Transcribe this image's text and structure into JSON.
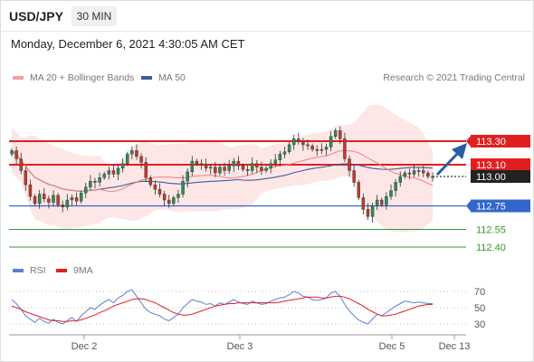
{
  "header": {
    "symbol": "USD/JPY",
    "timeframe": "30 MIN"
  },
  "timestamp": "Monday, December 6, 2021 4:30:05 AM CET",
  "legend": {
    "ma20_label": "MA 20 + Bollinger Bands",
    "ma50_label": "MA 50",
    "copyright": "Research © 2021 Trading Central",
    "rsi_label": "RSI",
    "rsi_ma_label": "9MA"
  },
  "colors": {
    "bollinger_fill": "#fde2e2",
    "ma20": "#f08080",
    "ma50": "#3f5c9a",
    "resistance": "#e02020",
    "support": "#3366cc",
    "target": "#339933",
    "bull": "#2e8b57",
    "bear": "#c0392b",
    "arrow": "#2b5ca8",
    "rsi": "#5b7fd6",
    "rsi_ma": "#e02020"
  },
  "chart_data": [
    {
      "type": "candlestick",
      "x_tick_labels": [
        "Dec 2",
        "Dec 3",
        "Dec 5",
        "Dec 13"
      ],
      "price_levels": [
        {
          "value": "113.30",
          "kind": "resistance"
        },
        {
          "value": "113.10",
          "kind": "resistance"
        },
        {
          "value": "113.00",
          "kind": "current"
        },
        {
          "value": "112.75",
          "kind": "support"
        },
        {
          "value": "112.55",
          "kind": "target"
        },
        {
          "value": "112.40",
          "kind": "target"
        }
      ],
      "approx_close_series": [
        113.22,
        113.15,
        113.05,
        112.93,
        112.83,
        112.77,
        112.85,
        112.81,
        112.78,
        112.84,
        112.76,
        112.74,
        112.8,
        112.82,
        112.79,
        112.86,
        112.91,
        112.96,
        112.95,
        112.99,
        113.02,
        113.05,
        113.02,
        113.07,
        113.11,
        113.19,
        113.22,
        113.17,
        113.12,
        112.99,
        112.93,
        112.89,
        112.85,
        112.8,
        112.77,
        112.82,
        112.85,
        112.96,
        113.04,
        113.13,
        113.11,
        113.1,
        113.07,
        113.08,
        113.03,
        113.08,
        113.05,
        113.09,
        113.13,
        113.09,
        113.06,
        113.05,
        113.11,
        113.08,
        113.05,
        113.07,
        113.11,
        113.14,
        113.19,
        113.21,
        113.27,
        113.32,
        113.3,
        113.27,
        113.26,
        113.23,
        113.22,
        113.23,
        113.25,
        113.34,
        113.39,
        113.32,
        113.15,
        113.05,
        112.95,
        112.82,
        112.72,
        112.66,
        112.75,
        112.8,
        112.76,
        112.83,
        112.88,
        112.95,
        113.0,
        113.03,
        113.02,
        113.05,
        113.05,
        113.03,
        113.0,
        113.0
      ],
      "projection": {
        "direction": "up",
        "from": "113.00",
        "to": "113.30"
      }
    },
    {
      "type": "line",
      "title": "RSI",
      "y_tick_labels": [
        "70",
        "50",
        "30"
      ],
      "series": [
        {
          "name": "RSI",
          "values": [
            60,
            55,
            48,
            40,
            36,
            32,
            37,
            33,
            31,
            36,
            32,
            30,
            34,
            38,
            33,
            40,
            45,
            50,
            48,
            53,
            57,
            60,
            56,
            62,
            65,
            70,
            72,
            64,
            56,
            48,
            44,
            42,
            40,
            36,
            34,
            38,
            42,
            50,
            55,
            60,
            58,
            57,
            54,
            55,
            52,
            56,
            54,
            57,
            60,
            57,
            55,
            54,
            58,
            56,
            54,
            55,
            58,
            60,
            62,
            63,
            66,
            70,
            68,
            64,
            63,
            60,
            59,
            60,
            62,
            68,
            70,
            64,
            54,
            46,
            40,
            35,
            32,
            30,
            36,
            42,
            40,
            44,
            48,
            52,
            55,
            58,
            57,
            56,
            57,
            56,
            55,
            55
          ]
        },
        {
          "name": "9MA",
          "values": [
            52,
            50,
            48,
            45,
            43,
            41,
            39,
            37,
            35,
            34,
            34,
            33,
            33,
            34,
            34,
            35,
            37,
            39,
            41,
            44,
            46,
            49,
            52,
            54,
            56,
            58,
            60,
            61,
            61,
            60,
            58,
            56,
            53,
            50,
            47,
            44,
            42,
            41,
            41,
            42,
            44,
            46,
            48,
            50,
            52,
            53,
            54,
            55,
            55,
            56,
            56,
            56,
            56,
            56,
            56,
            56,
            56,
            56,
            57,
            58,
            59,
            60,
            61,
            62,
            63,
            63,
            63,
            62,
            62,
            63,
            64,
            64,
            63,
            61,
            58,
            55,
            52,
            48,
            45,
            42,
            40,
            40,
            41,
            42,
            44,
            46,
            48,
            50,
            52,
            53,
            54,
            54
          ]
        }
      ]
    }
  ]
}
